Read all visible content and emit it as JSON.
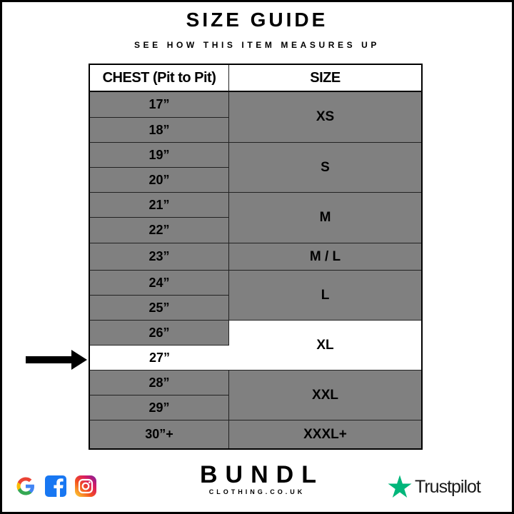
{
  "title": "SIZE GUIDE",
  "subtitle": "SEE HOW THIS ITEM MEASURES UP",
  "table": {
    "headers": [
      "CHEST (Pit to Pit)",
      "SIZE"
    ],
    "chest": [
      "17”",
      "18”",
      "19”",
      "20”",
      "21”",
      "22”",
      "23”",
      "24”",
      "25”",
      "26”",
      "27”",
      "28”",
      "29”",
      "30”+"
    ],
    "sizes": [
      "XS",
      "S",
      "M",
      "M / L",
      "L",
      "XL",
      "XXL",
      "XXXL+"
    ],
    "highlighted_chest": "27”",
    "highlighted_size": "XL",
    "cell_color": "#808080",
    "highlight_color": "#ffffff"
  },
  "footer": {
    "social_icons": [
      "google-icon",
      "facebook-icon",
      "instagram-icon"
    ],
    "brand_name": "BUNDL",
    "brand_sub": "CLOTHING.CO.UK",
    "trustpilot": "Trustpilot",
    "trustpilot_color": "#00b67a"
  }
}
